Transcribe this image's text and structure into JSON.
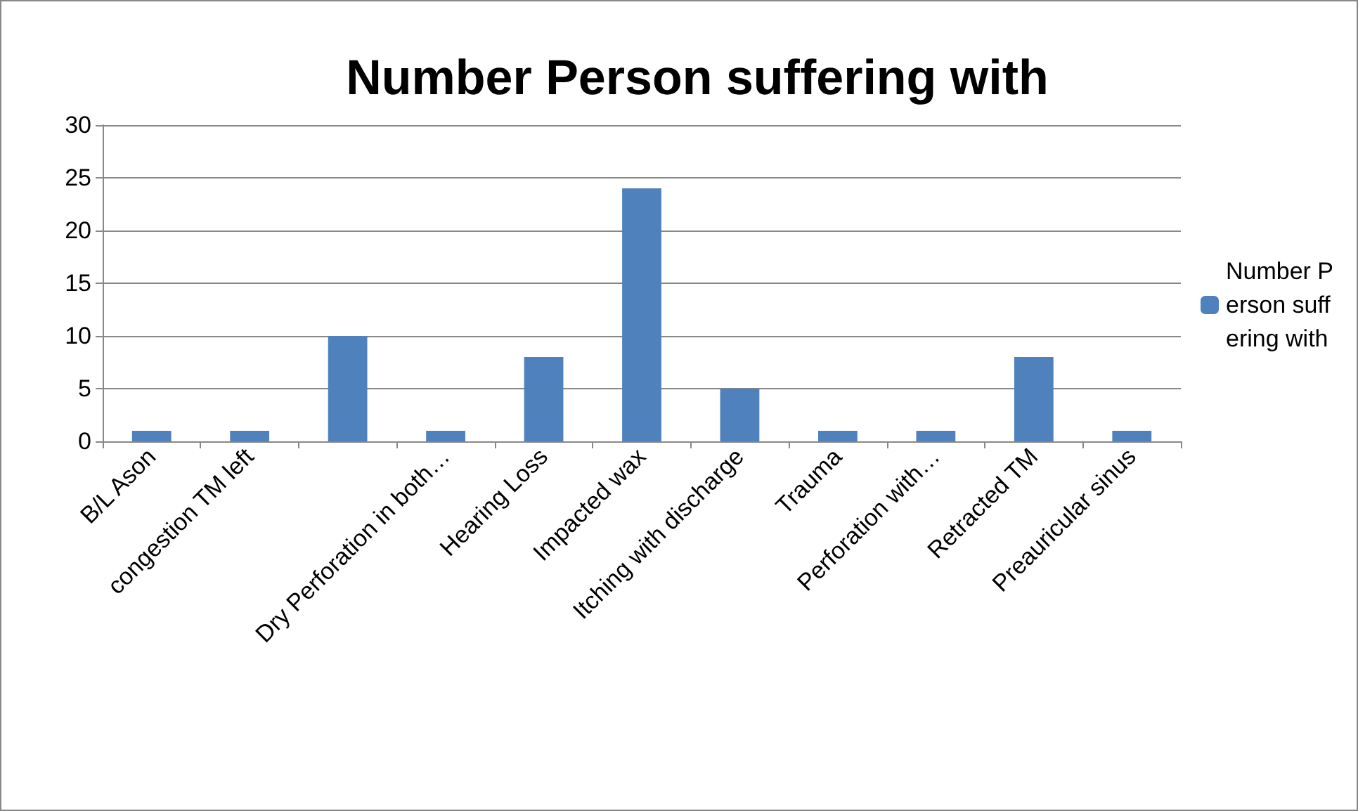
{
  "chart_data": {
    "type": "bar",
    "title": "Number Person suffering with",
    "categories": [
      "B/L Ason",
      "congestion TM left",
      null,
      "Dry Perforation in both…",
      "Hearing Loss",
      "Impacted wax",
      "Itching with discharge",
      "Trauma",
      "Perforation with…",
      "Retracted TM",
      "Preauricular sinus"
    ],
    "series": [
      {
        "name": "Number Person suffering with",
        "color": "#4f81bd",
        "values": [
          1,
          1,
          10,
          1,
          8,
          24,
          5,
          1,
          1,
          8,
          1
        ]
      }
    ],
    "ylim": [
      0,
      30
    ],
    "yticks": [
      0,
      5,
      10,
      15,
      20,
      25,
      30
    ],
    "grid": "y",
    "legend": "right"
  }
}
